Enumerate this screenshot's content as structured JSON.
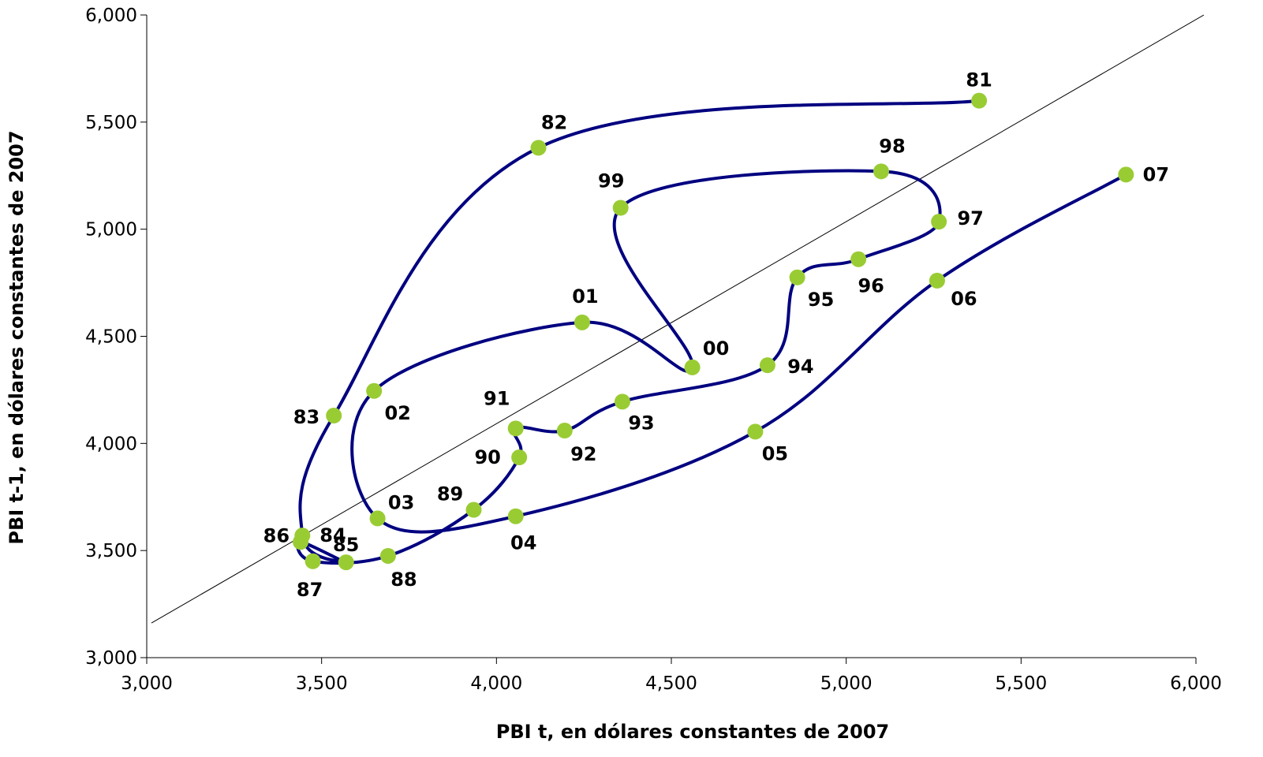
{
  "chart_data": {
    "type": "scatter",
    "xlabel": "PBI  t, en dólares constantes de 2007",
    "ylabel": "PBI  t-1, en dólares constantes de 2007",
    "xlim": [
      3000,
      6000
    ],
    "ylim": [
      3000,
      6000
    ],
    "x_ticks": [
      "3,000",
      "3,500",
      "4,000",
      "4,500",
      "5,000",
      "5,500",
      "6,000"
    ],
    "y_ticks": [
      "3,000",
      "3,500",
      "4,000",
      "4,500",
      "5,000",
      "5,500",
      "6,000"
    ],
    "grid": false,
    "legend": "none",
    "line_color": "#000080",
    "marker_color": "#99cc33",
    "reference_line": {
      "from": [
        3000,
        3180
      ],
      "to": [
        6000,
        6000
      ],
      "color": "#000000"
    },
    "points": [
      {
        "label": "81",
        "x": 5380,
        "y": 5600
      },
      {
        "label": "82",
        "x": 4120,
        "y": 5380
      },
      {
        "label": "83",
        "x": 3535,
        "y": 4130
      },
      {
        "label": "84",
        "x": 3445,
        "y": 3570
      },
      {
        "label": "85",
        "x": 3570,
        "y": 3445
      },
      {
        "label": "86",
        "x": 3440,
        "y": 3540
      },
      {
        "label": "87",
        "x": 3475,
        "y": 3450
      },
      {
        "label": "88",
        "x": 3690,
        "y": 3475
      },
      {
        "label": "89",
        "x": 3935,
        "y": 3690
      },
      {
        "label": "90",
        "x": 4065,
        "y": 3935
      },
      {
        "label": "91",
        "x": 4055,
        "y": 4070
      },
      {
        "label": "92",
        "x": 4195,
        "y": 4060
      },
      {
        "label": "93",
        "x": 4360,
        "y": 4195
      },
      {
        "label": "94",
        "x": 4775,
        "y": 4365
      },
      {
        "label": "95",
        "x": 4860,
        "y": 4775
      },
      {
        "label": "96",
        "x": 5035,
        "y": 4860
      },
      {
        "label": "97",
        "x": 5265,
        "y": 5035
      },
      {
        "label": "98",
        "x": 5100,
        "y": 5270
      },
      {
        "label": "99",
        "x": 4355,
        "y": 5100
      },
      {
        "label": "00",
        "x": 4560,
        "y": 4355
      },
      {
        "label": "01",
        "x": 4245,
        "y": 4565
      },
      {
        "label": "02",
        "x": 3650,
        "y": 4245
      },
      {
        "label": "03",
        "x": 3660,
        "y": 3650
      },
      {
        "label": "04",
        "x": 4055,
        "y": 3660
      },
      {
        "label": "05",
        "x": 4740,
        "y": 4055
      },
      {
        "label": "06",
        "x": 5260,
        "y": 4760
      },
      {
        "label": "07",
        "x": 5800,
        "y": 5255
      }
    ]
  }
}
